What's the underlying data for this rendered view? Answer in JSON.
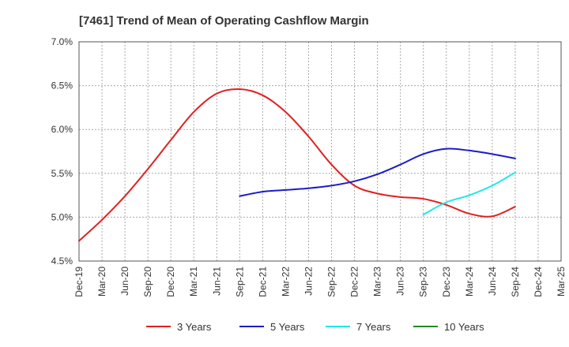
{
  "chart_data": {
    "type": "line",
    "title": "[7461]  Trend of Mean of Operating Cashflow Margin",
    "xlabel": "",
    "ylabel": "",
    "x_categories": [
      "Dec-19",
      "Mar-20",
      "Jun-20",
      "Sep-20",
      "Dec-20",
      "Mar-21",
      "Jun-21",
      "Sep-21",
      "Dec-21",
      "Mar-22",
      "Jun-22",
      "Sep-22",
      "Dec-22",
      "Mar-23",
      "Jun-23",
      "Sep-23",
      "Dec-23",
      "Mar-24",
      "Jun-24",
      "Sep-24",
      "Dec-24",
      "Mar-25"
    ],
    "ylim": [
      4.5,
      7.0
    ],
    "y_ticks": [
      4.5,
      5.0,
      5.5,
      6.0,
      6.5,
      7.0
    ],
    "y_tick_labels": [
      "4.5%",
      "5.0%",
      "5.5%",
      "6.0%",
      "6.5%",
      "7.0%"
    ],
    "grid": true,
    "legend_position": "bottom",
    "series": [
      {
        "name": "3 Years",
        "color": "#e02020",
        "points": [
          [
            "Dec-19",
            4.73
          ],
          [
            "Mar-20",
            4.97
          ],
          [
            "Jun-20",
            5.24
          ],
          [
            "Sep-20",
            5.55
          ],
          [
            "Dec-20",
            5.88
          ],
          [
            "Mar-21",
            6.2
          ],
          [
            "Jun-21",
            6.41
          ],
          [
            "Sep-21",
            6.46
          ],
          [
            "Dec-21",
            6.39
          ],
          [
            "Mar-22",
            6.2
          ],
          [
            "Jun-22",
            5.92
          ],
          [
            "Sep-22",
            5.6
          ],
          [
            "Dec-22",
            5.36
          ],
          [
            "Mar-23",
            5.27
          ],
          [
            "Jun-23",
            5.23
          ],
          [
            "Sep-23",
            5.21
          ],
          [
            "Dec-23",
            5.14
          ],
          [
            "Mar-24",
            5.04
          ],
          [
            "Jun-24",
            5.01
          ],
          [
            "Sep-24",
            5.12
          ]
        ]
      },
      {
        "name": "5 Years",
        "color": "#1c1cc8",
        "points": [
          [
            "Sep-21",
            5.24
          ],
          [
            "Dec-21",
            5.29
          ],
          [
            "Mar-22",
            5.31
          ],
          [
            "Jun-22",
            5.33
          ],
          [
            "Sep-22",
            5.36
          ],
          [
            "Dec-22",
            5.41
          ],
          [
            "Mar-23",
            5.49
          ],
          [
            "Jun-23",
            5.6
          ],
          [
            "Sep-23",
            5.72
          ],
          [
            "Dec-23",
            5.78
          ],
          [
            "Mar-24",
            5.76
          ],
          [
            "Jun-24",
            5.72
          ],
          [
            "Sep-24",
            5.67
          ]
        ]
      },
      {
        "name": "7 Years",
        "color": "#1ee8e8",
        "points": [
          [
            "Sep-23",
            5.03
          ],
          [
            "Dec-23",
            5.17
          ],
          [
            "Mar-24",
            5.25
          ],
          [
            "Jun-24",
            5.36
          ],
          [
            "Sep-24",
            5.51
          ]
        ]
      },
      {
        "name": "10 Years",
        "color": "#1e8a1e",
        "points": []
      }
    ]
  }
}
